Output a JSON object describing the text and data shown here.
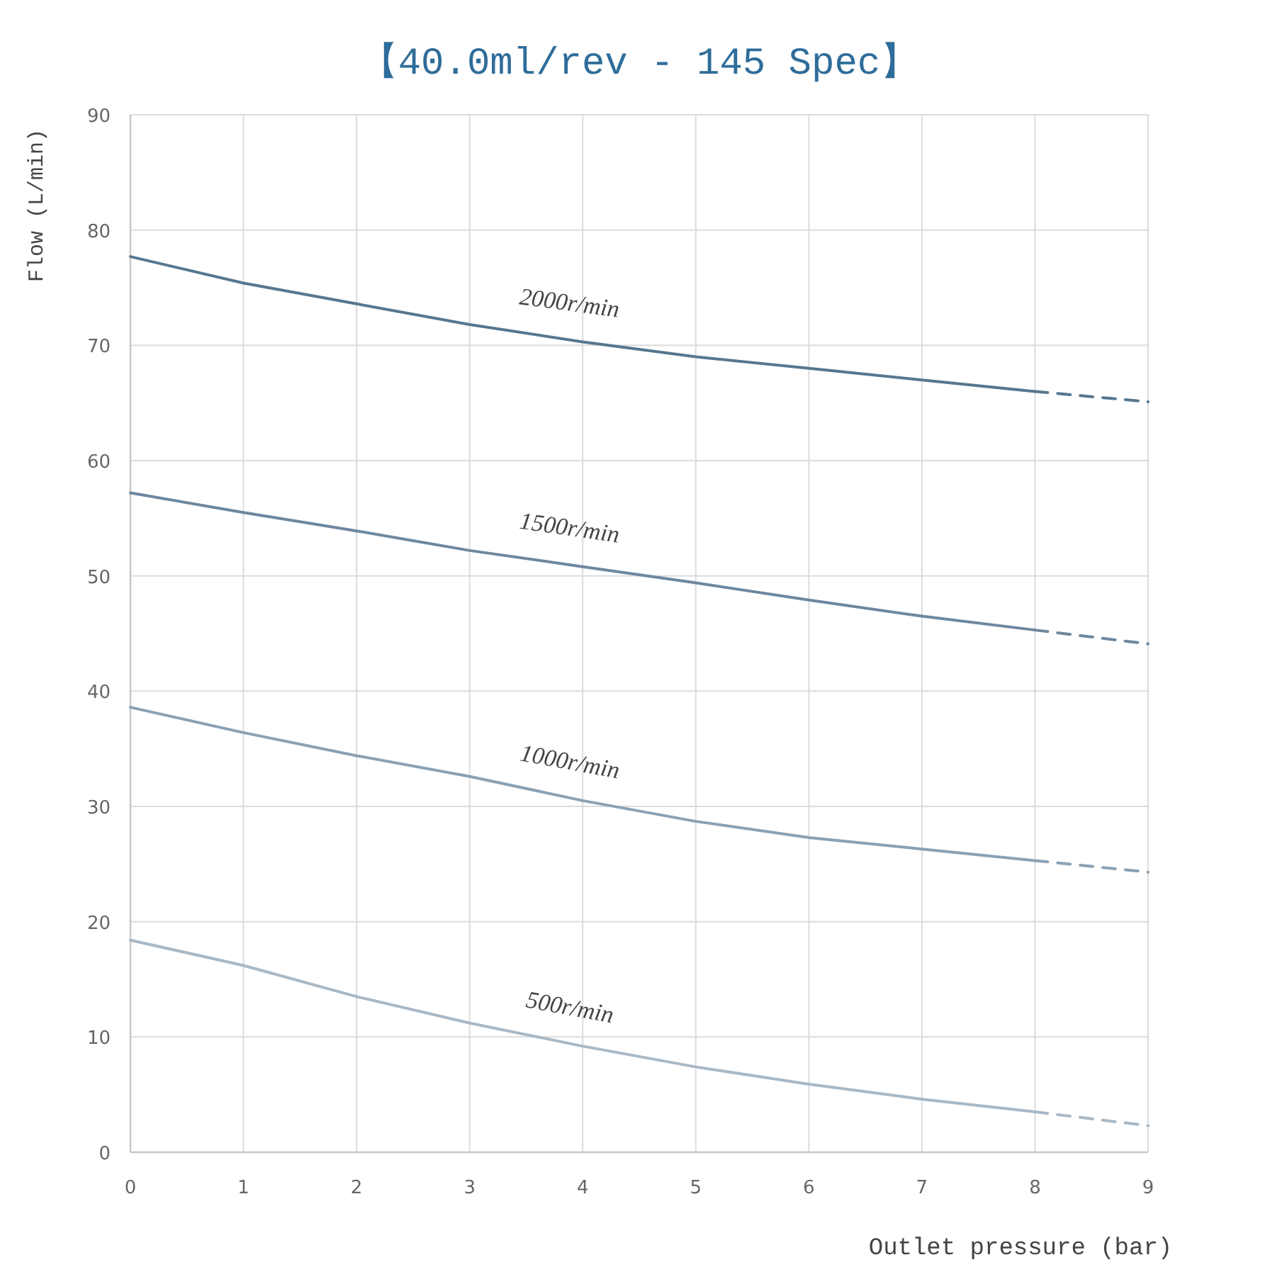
{
  "chart_data": {
    "type": "line",
    "title": "【40.0ml/rev - 145 Spec】",
    "xlabel": "Outlet pressure (bar)",
    "ylabel": "Flow (L/min)",
    "xlim": [
      0,
      9
    ],
    "ylim": [
      0,
      90
    ],
    "xticks": [
      0,
      1,
      2,
      3,
      4,
      5,
      6,
      7,
      8,
      9
    ],
    "yticks": [
      0,
      10,
      20,
      30,
      40,
      50,
      60,
      70,
      80,
      90
    ],
    "grid": true,
    "series": [
      {
        "name": "2000r/min",
        "color": "#56778f",
        "line_style": "solid",
        "x": [
          0,
          1,
          2,
          3,
          4,
          5,
          6,
          7,
          8
        ],
        "values": [
          77.7,
          75.4,
          73.6,
          71.8,
          70.3,
          69.0,
          68.0,
          67.0,
          66.0
        ]
      },
      {
        "color": "#56778f",
        "line_style": "dashed",
        "x": [
          8,
          9
        ],
        "values": [
          66.0,
          65.1
        ]
      },
      {
        "name": "1500r/min",
        "color": "#6c889f",
        "line_style": "solid",
        "x": [
          0,
          1,
          2,
          3,
          4,
          5,
          6,
          7,
          8
        ],
        "values": [
          57.2,
          55.5,
          53.9,
          52.2,
          50.8,
          49.4,
          47.9,
          46.5,
          45.3
        ]
      },
      {
        "color": "#6c889f",
        "line_style": "dashed",
        "x": [
          8,
          9
        ],
        "values": [
          45.3,
          44.1
        ]
      },
      {
        "name": "1000r/min",
        "color": "#8aa1b4",
        "line_style": "solid",
        "x": [
          0,
          1,
          2,
          3,
          4,
          5,
          6,
          7,
          8
        ],
        "values": [
          38.6,
          36.4,
          34.4,
          32.6,
          30.5,
          28.7,
          27.3,
          26.3,
          25.3
        ]
      },
      {
        "color": "#8aa1b4",
        "line_style": "dashed",
        "x": [
          8,
          9
        ],
        "values": [
          25.3,
          24.3
        ]
      },
      {
        "name": "500r/min",
        "color": "#a7b8c6",
        "line_style": "solid",
        "x": [
          0,
          1,
          2,
          3,
          4,
          5,
          6,
          7,
          8
        ],
        "values": [
          18.4,
          16.2,
          13.5,
          11.2,
          9.2,
          7.4,
          5.9,
          4.6,
          3.5
        ]
      },
      {
        "color": "#a7b8c6",
        "line_style": "dashed",
        "x": [
          8,
          9
        ],
        "values": [
          3.5,
          2.3
        ]
      }
    ]
  }
}
